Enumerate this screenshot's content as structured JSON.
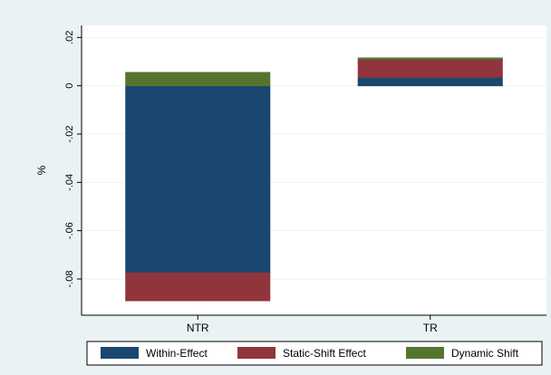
{
  "chart_data": {
    "type": "bar",
    "stacked": true,
    "title": "",
    "xlabel": "",
    "ylabel": "%",
    "ylim": [
      -0.095,
      0.025
    ],
    "yticks": [
      ".02",
      "0",
      "-.02",
      "-.04",
      "-.06",
      "-.08"
    ],
    "ytick_values": [
      0.02,
      0,
      -0.02,
      -0.04,
      -0.06,
      -0.08
    ],
    "categories": [
      "NTR",
      "TR"
    ],
    "series": [
      {
        "name": "Within-Effect",
        "color": "#1a476f",
        "values": [
          -0.0775,
          0.0035
        ]
      },
      {
        "name": "Static-Shift Effect",
        "color": "#90353b",
        "values": [
          -0.0115,
          0.0075
        ]
      },
      {
        "name": "Dynamic Shift",
        "color": "#55752f",
        "values": [
          0.0055,
          0.0005
        ]
      }
    ],
    "grid": true,
    "legend_position": "bottom"
  }
}
